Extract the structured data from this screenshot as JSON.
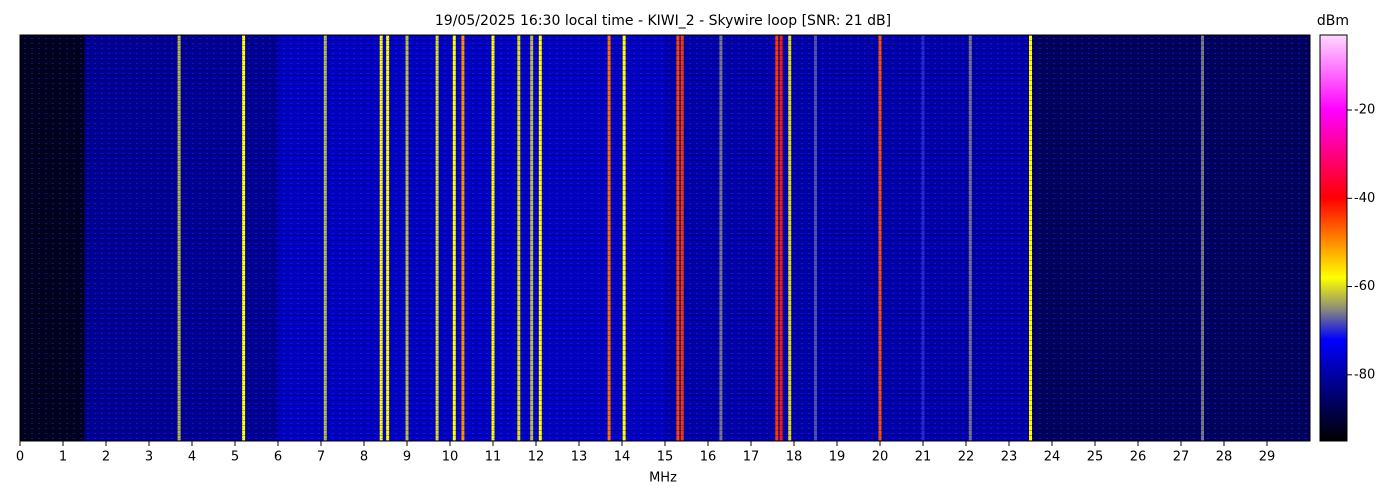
{
  "chart_data": {
    "type": "waterfall",
    "title": "19/05/2025 16:30 local time - KIWI_2 - Skywire loop [SNR: 21 dB]",
    "xlabel": "MHz",
    "colorbar_label": "dBm",
    "xlim": [
      0,
      30
    ],
    "xticks": [
      0,
      1,
      2,
      3,
      4,
      5,
      6,
      7,
      8,
      9,
      10,
      11,
      12,
      13,
      14,
      15,
      16,
      17,
      18,
      19,
      20,
      21,
      22,
      23,
      24,
      25,
      26,
      27,
      28,
      29
    ],
    "clim": [
      -95,
      -3
    ],
    "cticks": [
      -20,
      -40,
      -60,
      -80
    ],
    "colormap": [
      {
        "value": -95,
        "color": "#000000"
      },
      {
        "value": -82,
        "color": "#00008c"
      },
      {
        "value": -72,
        "color": "#0000ff"
      },
      {
        "value": -65,
        "color": "#8c8c7a"
      },
      {
        "value": -58,
        "color": "#ffff00"
      },
      {
        "value": -40,
        "color": "#ff0000"
      },
      {
        "value": -20,
        "color": "#ff00ff"
      },
      {
        "value": -3,
        "color": "#ffd8ff"
      }
    ],
    "noise_floor": {
      "from": [
        0,
        1.5,
        6,
        15,
        23.5
      ],
      "to": [
        1.5,
        6,
        15,
        23.5,
        30
      ],
      "levels": [
        -92,
        -81,
        -77,
        -79,
        -86
      ]
    },
    "signals": {
      "freqs": [
        3.7,
        5.2,
        7.1,
        8.4,
        8.55,
        9.0,
        9.7,
        10.1,
        10.3,
        11.0,
        11.6,
        11.9,
        12.1,
        13.7,
        14.05,
        15.3,
        15.4,
        16.3,
        17.6,
        17.7,
        17.9,
        18.5,
        20.0,
        21.0,
        22.1,
        23.5,
        27.5
      ],
      "levels": [
        -62,
        -58,
        -62,
        -58,
        -58,
        -62,
        -60,
        -58,
        -50,
        -58,
        -60,
        -62,
        -58,
        -48,
        -58,
        -45,
        -44,
        -66,
        -44,
        -42,
        -60,
        -68,
        -46,
        -70,
        -66,
        -58,
        -66
      ]
    }
  }
}
